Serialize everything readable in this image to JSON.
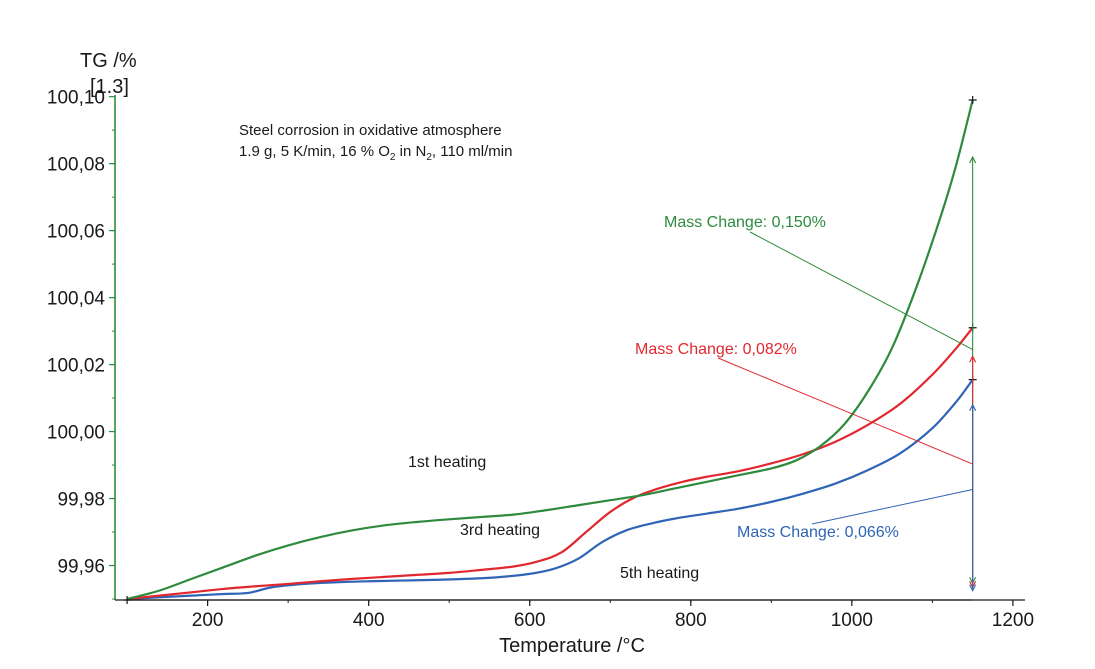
{
  "chart_data": {
    "type": "line",
    "y_axis_title": "TG /%",
    "y_axis_subtitle": "[1.3]",
    "xlabel": "Temperature /°C",
    "xlim": [
      85,
      1215
    ],
    "ylim": [
      99.9497,
      100.1005
    ],
    "x_ticks": [
      200,
      400,
      600,
      800,
      1000,
      1200
    ],
    "y_ticks": [
      99.96,
      99.98,
      100.0,
      100.02,
      100.04,
      100.06,
      100.08,
      100.1
    ],
    "y_tick_labels": [
      "99,96",
      "99,98",
      "100,00",
      "100,02",
      "100,04",
      "100,06",
      "100,08",
      "100,10"
    ],
    "annotation": {
      "line1": "Steel corrosion in oxidative atmosphere",
      "line2_prefix": "1.9 g, 5 K/min, 16 % O",
      "line2_sub1": "2",
      "line2_mid": " in N",
      "line2_sub2": "2",
      "line2_suffix": ", 110 ml/min"
    },
    "series": [
      {
        "name": "1st heating",
        "color": "#2e8b3e",
        "mass_change_label": "Mass Change: 0,150%",
        "x": [
          100,
          140,
          180,
          220,
          260,
          300,
          340,
          380,
          420,
          460,
          500,
          540,
          580,
          620,
          660,
          700,
          740,
          780,
          820,
          860,
          900,
          930,
          960,
          990,
          1020,
          1050,
          1080,
          1110,
          1130,
          1150
        ],
        "y": [
          99.95,
          99.9525,
          99.956,
          99.9595,
          99.963,
          99.966,
          99.9685,
          99.9705,
          99.972,
          99.973,
          99.9738,
          99.9745,
          99.9752,
          99.9765,
          99.978,
          99.9795,
          99.981,
          99.983,
          99.985,
          99.987,
          99.989,
          99.9913,
          99.9955,
          100.002,
          100.012,
          100.025,
          100.043,
          100.064,
          100.08,
          100.099
        ]
      },
      {
        "name": "3rd heating",
        "color": "#e0282e",
        "mass_change_label": "Mass Change: 0,082%",
        "x": [
          100,
          140,
          180,
          220,
          260,
          300,
          340,
          380,
          420,
          460,
          500,
          540,
          580,
          610,
          640,
          670,
          700,
          730,
          760,
          790,
          820,
          860,
          900,
          940,
          980,
          1020,
          1060,
          1100,
          1130,
          1150
        ],
        "y": [
          99.95,
          99.951,
          99.952,
          99.953,
          99.9538,
          99.9545,
          99.9553,
          99.956,
          99.9566,
          99.9572,
          99.9578,
          99.9587,
          99.9597,
          99.9612,
          99.964,
          99.97,
          99.976,
          99.9803,
          99.983,
          99.985,
          99.9865,
          99.9882,
          99.9905,
          99.9933,
          99.997,
          100.002,
          100.0083,
          100.017,
          100.025,
          100.031
        ]
      },
      {
        "name": "5th heating",
        "color": "#2f64b6",
        "mass_change_label": "Mass Change: 0,066%",
        "x": [
          100,
          140,
          180,
          220,
          250,
          280,
          320,
          360,
          400,
          440,
          480,
          520,
          560,
          600,
          630,
          660,
          690,
          720,
          750,
          780,
          820,
          860,
          900,
          940,
          980,
          1020,
          1060,
          1100,
          1130,
          1150
        ],
        "y": [
          99.95,
          99.9505,
          99.951,
          99.9515,
          99.9518,
          99.9535,
          99.9545,
          99.955,
          99.9553,
          99.9555,
          99.9557,
          99.956,
          99.9565,
          99.9575,
          99.959,
          99.962,
          99.967,
          99.9705,
          99.9725,
          99.974,
          99.9755,
          99.977,
          99.979,
          99.9815,
          99.9845,
          99.9885,
          99.9935,
          100.001,
          100.009,
          100.0155
        ]
      },
      {
        "name": "",
        "color": "#4a4a4a",
        "x": [
          100,
          1150
        ],
        "y": [
          99.9497,
          99.9497
        ]
      }
    ],
    "grid": false
  }
}
